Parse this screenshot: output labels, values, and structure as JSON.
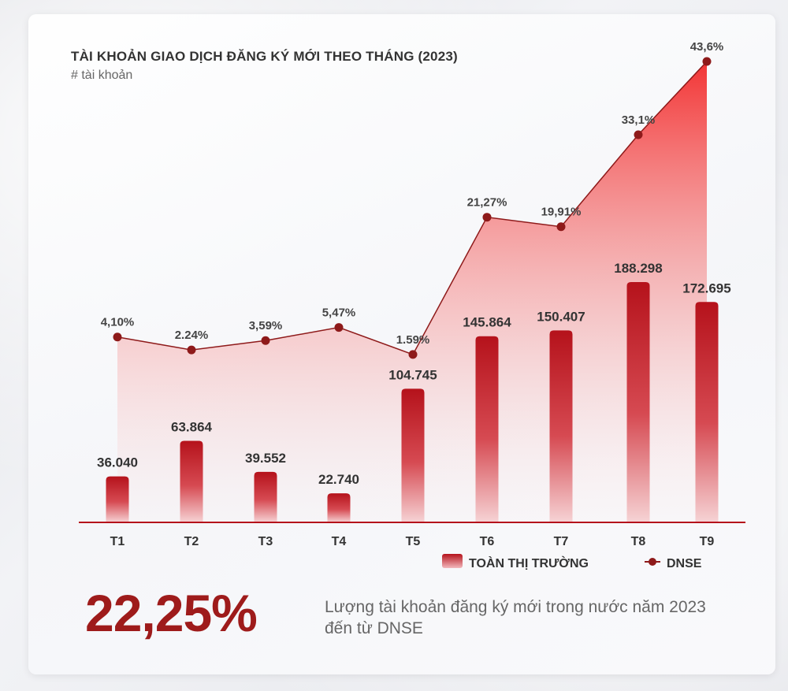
{
  "chart_data": {
    "type": "bar",
    "title": "TÀI KHOẢN GIAO DỊCH ĐĂNG KÝ MỚI THEO THÁNG (2023)",
    "subtitle": "# tài khoản",
    "categories": [
      "T1",
      "T2",
      "T3",
      "T4",
      "T5",
      "T6",
      "T7",
      "T8",
      "T9"
    ],
    "series": [
      {
        "name": "TOÀN THỊ TRƯỜNG",
        "type": "bar",
        "values": [
          36040,
          63864,
          39552,
          22740,
          104745,
          145864,
          150407,
          188298,
          172695
        ],
        "labels": [
          "36.040",
          "63.864",
          "39.552",
          "22.740",
          "104.745",
          "145.864",
          "150.407",
          "188.298",
          "172.695"
        ]
      },
      {
        "name": "DNSE",
        "type": "line",
        "values": [
          4.1,
          2.24,
          3.59,
          5.47,
          1.59,
          21.27,
          19.91,
          33.1,
          43.6
        ],
        "labels": [
          "4,10%",
          "2.24%",
          "3,59%",
          "5,47%",
          "1.59%",
          "21,27%",
          "19,91%",
          "33,1%",
          "43,6%"
        ]
      }
    ],
    "legend": "bottom-right",
    "colors": {
      "bar": "#b5121b",
      "line": "#8e1a1a",
      "area": "#f03a3a",
      "axis": "#b5121b"
    }
  },
  "highlight": {
    "value": "22,25%",
    "caption": "Lượng tài khoản đăng ký mới trong nước năm 2023 đến từ DNSE"
  }
}
